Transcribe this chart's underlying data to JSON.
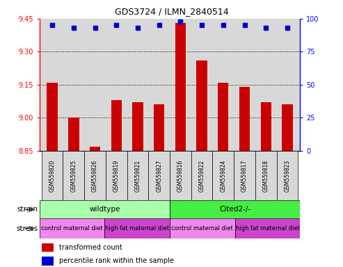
{
  "title": "GDS3724 / ILMN_2840514",
  "samples": [
    "GSM559820",
    "GSM559825",
    "GSM559826",
    "GSM559819",
    "GSM559821",
    "GSM559827",
    "GSM559816",
    "GSM559822",
    "GSM559824",
    "GSM559817",
    "GSM559818",
    "GSM559823"
  ],
  "bar_values": [
    9.16,
    9.0,
    8.87,
    9.08,
    9.07,
    9.06,
    9.43,
    9.26,
    9.16,
    9.14,
    9.07,
    9.06
  ],
  "percentile_values": [
    95,
    93,
    93,
    95,
    93,
    95,
    98,
    95,
    95,
    95,
    93,
    93
  ],
  "bar_color": "#cc0000",
  "dot_color": "#0000cc",
  "ylim_left": [
    8.85,
    9.45
  ],
  "ylim_right": [
    0,
    100
  ],
  "yticks_left": [
    8.85,
    9.0,
    9.15,
    9.3,
    9.45
  ],
  "yticks_right": [
    0,
    25,
    50,
    75,
    100
  ],
  "grid_values": [
    9.0,
    9.15,
    9.3
  ],
  "strain_labels": [
    {
      "label": "wildtype",
      "start": 0,
      "end": 6,
      "color": "#aaffaa"
    },
    {
      "label": "Cited2-/-",
      "start": 6,
      "end": 12,
      "color": "#44ee44"
    }
  ],
  "stress_groups": [
    {
      "label": "control maternal diet",
      "start": 0,
      "end": 3,
      "color": "#ee88ee"
    },
    {
      "label": "high fat maternal diet",
      "start": 3,
      "end": 6,
      "color": "#cc44cc"
    },
    {
      "label": "control maternal diet",
      "start": 6,
      "end": 9,
      "color": "#ee88ee"
    },
    {
      "label": "high fat maternal diet",
      "start": 9,
      "end": 12,
      "color": "#cc44cc"
    }
  ],
  "legend_items": [
    {
      "color": "#cc0000",
      "label": "transformed count"
    },
    {
      "color": "#0000cc",
      "label": "percentile rank within the sample"
    }
  ],
  "bar_width": 0.5,
  "plot_bg_color": "#d8d8d8",
  "xticklabel_bg": "#d8d8d8"
}
